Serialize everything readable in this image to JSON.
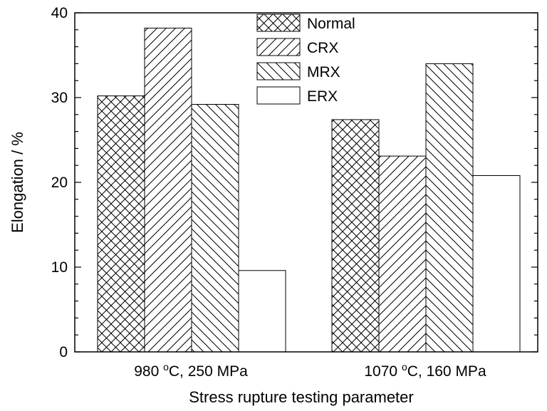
{
  "chart_data": {
    "type": "bar",
    "categories": [
      "980 °C, 250 MPa",
      "1070 °C, 160 MPa"
    ],
    "category_labels": [
      {
        "pre": "980 ",
        "sup": "o",
        "post": "C, 250 MPa"
      },
      {
        "pre": "1070 ",
        "sup": "o",
        "post": "C, 160 MPa"
      }
    ],
    "series": [
      {
        "name": "Normal",
        "values": [
          30.2,
          27.4
        ],
        "pattern": "crosshatch"
      },
      {
        "name": "CRX",
        "values": [
          38.2,
          23.1
        ],
        "pattern": "forward-diagonal"
      },
      {
        "name": "MRX",
        "values": [
          29.2,
          34.0
        ],
        "pattern": "backward-diagonal"
      },
      {
        "name": "ERX",
        "values": [
          9.6,
          20.8
        ],
        "pattern": "none"
      }
    ],
    "title": "",
    "xlabel": "Stress rupture testing parameter",
    "ylabel": "Elongation / %",
    "ylim": [
      0,
      40
    ],
    "yticks": [
      0,
      10,
      20,
      30,
      40
    ],
    "grid": false,
    "legend_position": "top-center"
  }
}
